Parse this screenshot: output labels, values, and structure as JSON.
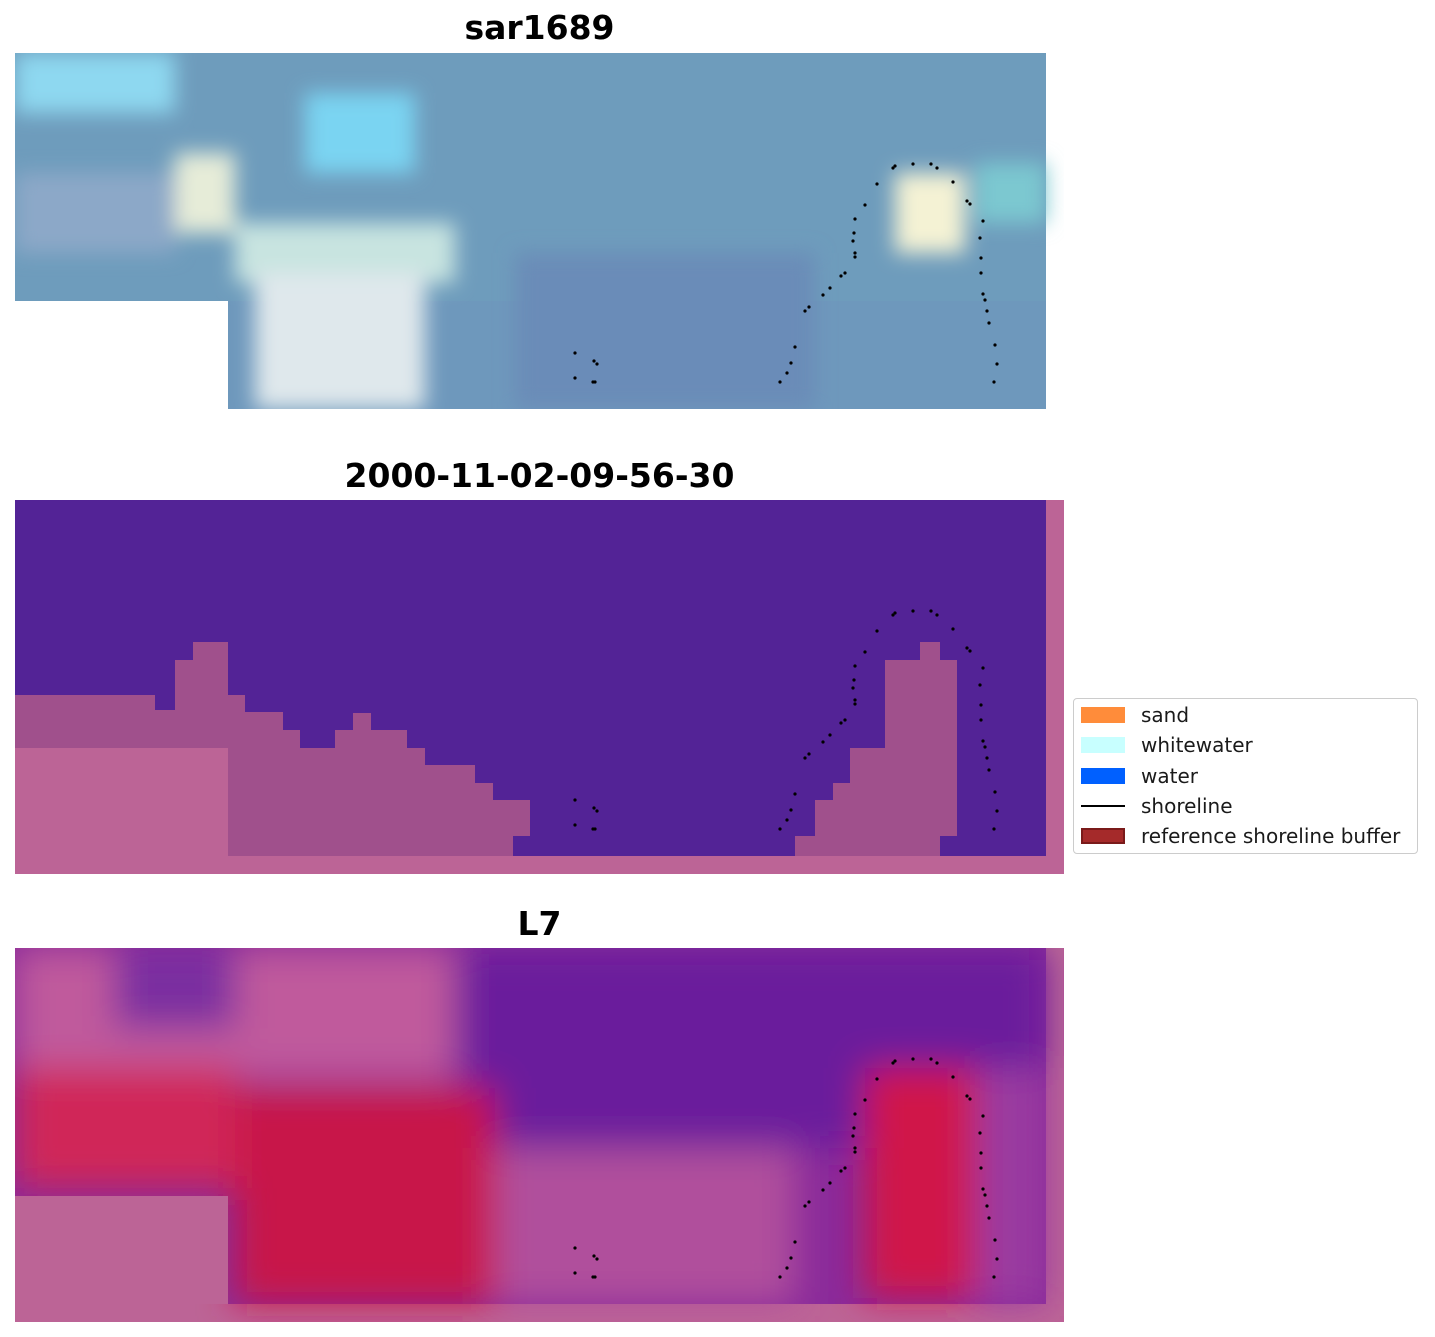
{
  "titles": {
    "top": "sar1689",
    "middle": "2000-11-02-09-56-30",
    "bottom": "L7"
  },
  "legend": {
    "items": [
      {
        "label": "sand",
        "color": "#ff8c3a",
        "kind": "patch"
      },
      {
        "label": "whitewater",
        "color": "#c8ffff",
        "kind": "patch"
      },
      {
        "label": "water",
        "color": "#0060ff",
        "kind": "patch"
      },
      {
        "label": "shoreline",
        "color": "#000000",
        "kind": "line"
      },
      {
        "label": "reference shoreline buffer",
        "color": "#a52a2a",
        "kind": "patch"
      }
    ]
  },
  "colors": {
    "nodata": "#bc6496",
    "class_water_overlay": "#532396",
    "rgb_water": "#5a8fb8",
    "index_low": "#5c0ea0",
    "index_high": "#c8103c"
  }
}
